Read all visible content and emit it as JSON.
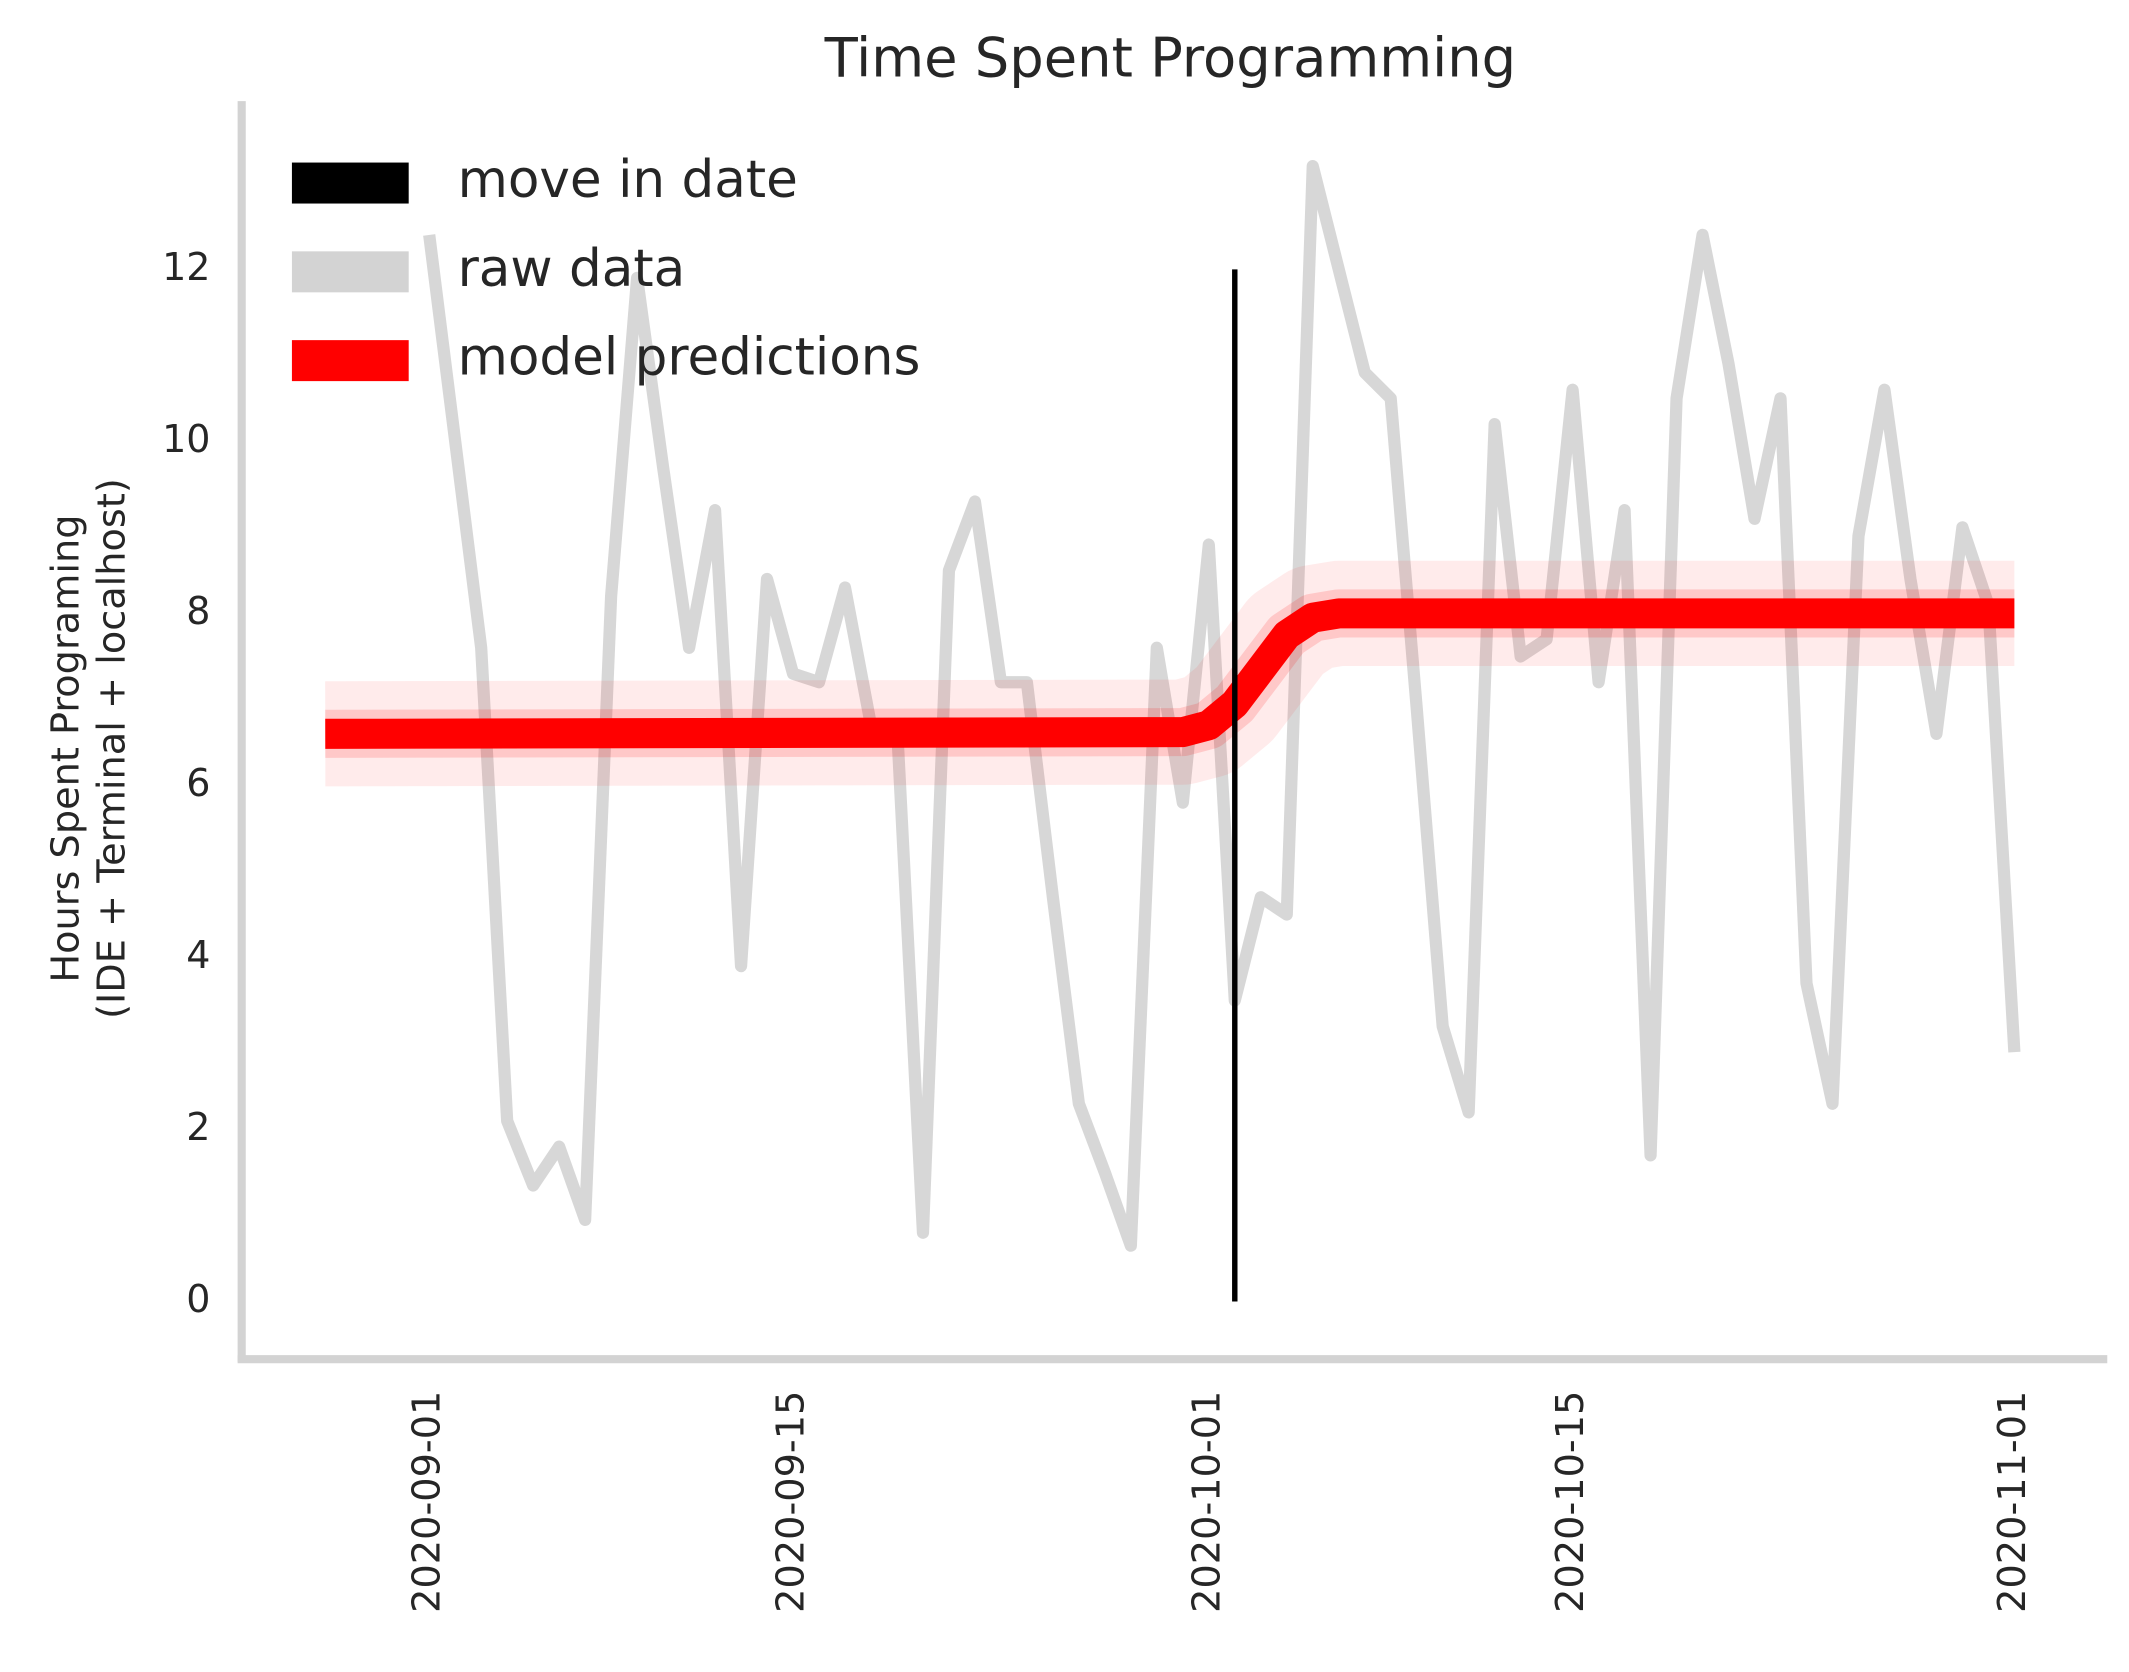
{
  "chart_data": {
    "type": "line",
    "title": "Time Spent Programming",
    "y_label": [
      "Hours Spent Programing",
      "(IDE + Terminal + localhost)"
    ],
    "xlim": [
      "2020-08-24",
      "2020-11-04"
    ],
    "xticks": [
      "2020-09-01",
      "2020-09-15",
      "2020-10-01",
      "2020-10-15",
      "2020-11-01"
    ],
    "ylim": [
      -0.67,
      13.94
    ],
    "yticks": [
      0,
      2,
      4,
      6,
      8,
      10,
      12
    ],
    "legend": "upper left",
    "grid": false,
    "series": [
      {
        "name": "move in date",
        "color": "#000000",
        "width": 4,
        "x": [
          "2020-10-02",
          "2020-10-02"
        ],
        "values": [
          0,
          12
        ]
      },
      {
        "name": "raw data",
        "color": "#d3d3d3",
        "width": 9,
        "x": [
          "2020-09-01",
          "2020-09-02",
          "2020-09-03",
          "2020-09-04",
          "2020-09-05",
          "2020-09-06",
          "2020-09-07",
          "2020-09-08",
          "2020-09-09",
          "2020-09-10",
          "2020-09-11",
          "2020-09-12",
          "2020-09-13",
          "2020-09-14",
          "2020-09-15",
          "2020-09-16",
          "2020-09-17",
          "2020-09-18",
          "2020-09-19",
          "2020-09-20",
          "2020-09-21",
          "2020-09-22",
          "2020-09-23",
          "2020-09-24",
          "2020-09-25",
          "2020-09-26",
          "2020-09-27",
          "2020-09-28",
          "2020-09-29",
          "2020-09-30",
          "2020-10-01",
          "2020-10-02",
          "2020-10-03",
          "2020-10-04",
          "2020-10-05",
          "2020-10-06",
          "2020-10-07",
          "2020-10-08",
          "2020-10-09",
          "2020-10-10",
          "2020-10-11",
          "2020-10-12",
          "2020-10-13",
          "2020-10-14",
          "2020-10-15",
          "2020-10-16",
          "2020-10-17",
          "2020-10-18",
          "2020-10-19",
          "2020-10-20",
          "2020-10-21",
          "2020-10-22",
          "2020-10-23",
          "2020-10-24",
          "2020-10-25",
          "2020-10-26",
          "2020-10-27",
          "2020-10-28",
          "2020-10-29",
          "2020-10-30",
          "2020-10-31",
          "2020-11-01"
        ],
        "values": [
          12.4,
          10,
          7.6,
          2.1,
          1.35,
          1.8,
          0.95,
          8.2,
          11.9,
          9.7,
          7.6,
          9.2,
          3.9,
          8.4,
          7.3,
          7.2,
          8.3,
          6.7,
          6.7,
          0.8,
          8.5,
          9.3,
          7.2,
          7.2,
          4.7,
          2.3,
          1.5,
          0.65,
          7.6,
          5.8,
          8.8,
          3.5,
          4.7,
          4.5,
          13.2,
          12.0,
          10.8,
          10.5,
          6.9,
          3.2,
          2.2,
          10.2,
          7.5,
          7.7,
          10.6,
          7.2,
          9.2,
          1.7,
          10.5,
          12.4,
          10.9,
          9.1,
          10.5,
          3.7,
          2.3,
          8.9,
          10.6,
          8.4,
          6.6,
          9.0,
          8.1,
          2.9
        ]
      },
      {
        "name": "model predictions",
        "color": "#ff0000",
        "width": 22,
        "x": [
          "2020-08-28",
          "2020-09-30",
          "2020-10-01",
          "2020-10-02",
          "2020-10-03",
          "2020-10-04",
          "2020-10-05",
          "2020-10-06",
          "2020-11-01"
        ],
        "values": [
          6.6,
          6.62,
          6.7,
          6.95,
          7.35,
          7.75,
          7.95,
          8.0,
          8.0
        ]
      }
    ]
  }
}
